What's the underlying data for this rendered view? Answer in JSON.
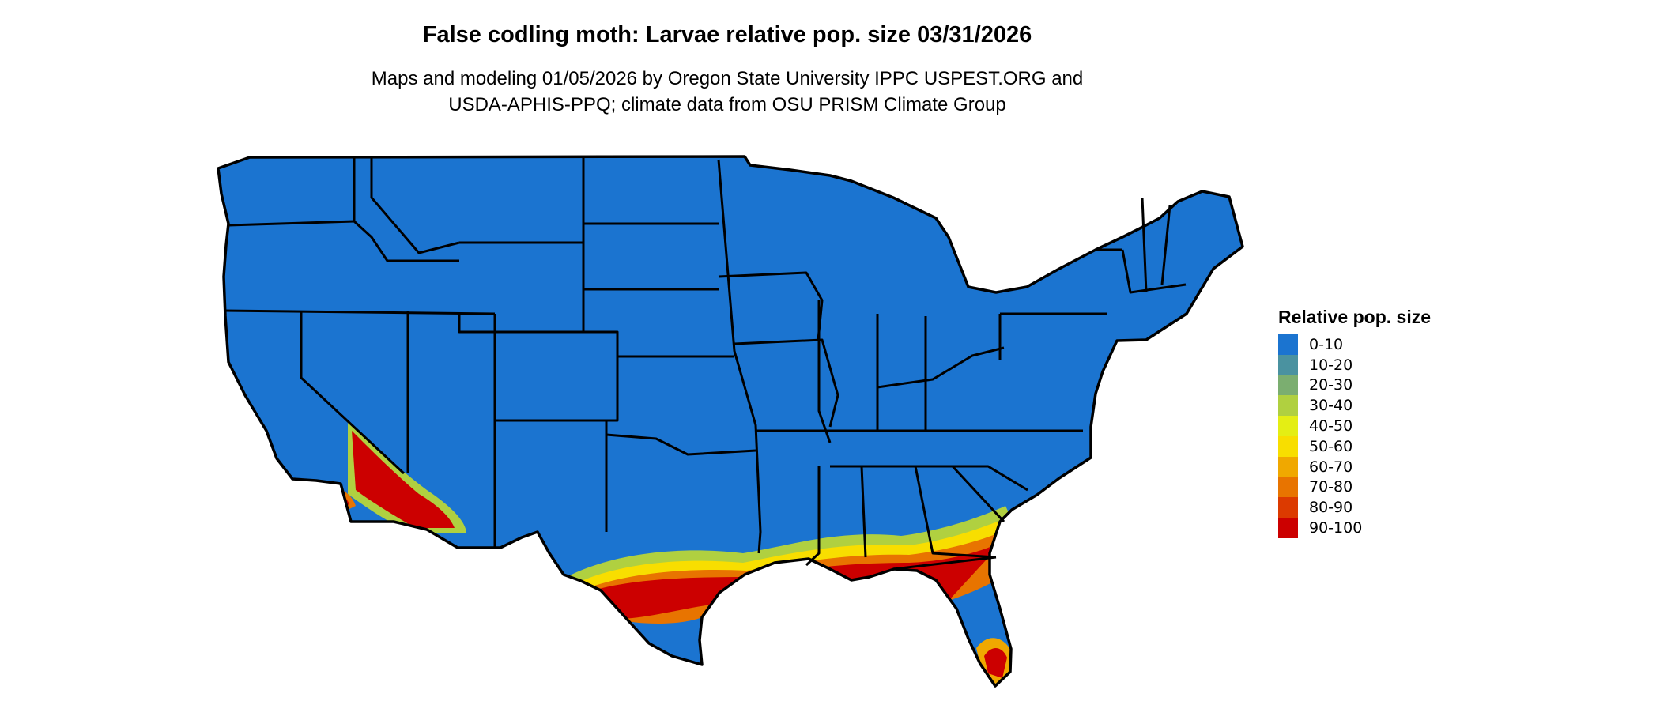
{
  "title": "False codling moth: Larvae relative pop. size 03/31/2026",
  "subtitle_lines": [
    "Maps and modeling 01/05/2026 by Oregon State University IPPC USPEST.ORG and",
    "USDA-APHIS-PPQ; climate data from OSU PRISM Climate Group"
  ],
  "legend": {
    "title": "Relative pop. size",
    "items": [
      {
        "label": "0-10",
        "color": "#1B74D0"
      },
      {
        "label": "10-20",
        "color": "#4A92A0"
      },
      {
        "label": "20-30",
        "color": "#7BAE70"
      },
      {
        "label": "30-40",
        "color": "#B0D040"
      },
      {
        "label": "40-50",
        "color": "#E4EE14"
      },
      {
        "label": "50-60",
        "color": "#F8DE00"
      },
      {
        "label": "60-70",
        "color": "#F0A800"
      },
      {
        "label": "70-80",
        "color": "#E87400"
      },
      {
        "label": "80-90",
        "color": "#DC3A00"
      },
      {
        "label": "90-100",
        "color": "#CC0000"
      }
    ]
  },
  "map": {
    "region": "Contiguous United States",
    "base_color": "#1B74D0",
    "border_color": "#000000",
    "hotspots": [
      "Gulf Coast (TX to FL)",
      "South Florida",
      "Southern California / Southwest Arizona"
    ]
  }
}
